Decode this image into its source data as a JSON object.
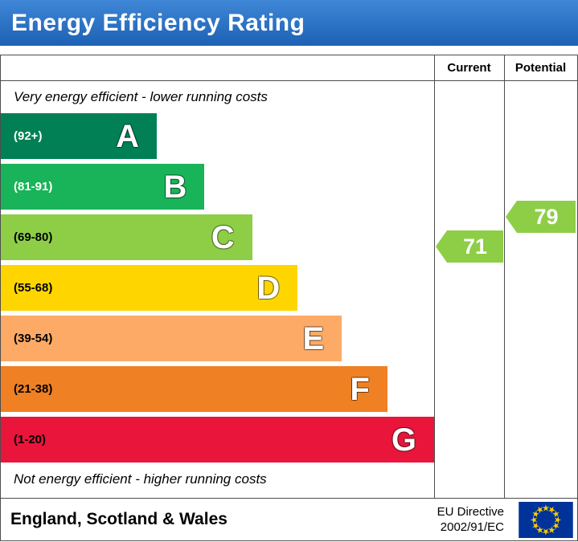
{
  "header": {
    "title": "Energy Efficiency Rating",
    "bg_top": "#3f87d6",
    "bg_bottom": "#1d61b5"
  },
  "chart_data": {
    "type": "bar",
    "title": "Energy Efficiency Rating",
    "top_note": "Very energy efficient - lower running costs",
    "bottom_note": "Not energy efficient - higher running costs",
    "columns": {
      "current_label": "Current",
      "potential_label": "Potential"
    },
    "bands": [
      {
        "letter": "A",
        "range": "(92+)",
        "color": "#008054",
        "text_color": "#ffffff",
        "width_pct": 36
      },
      {
        "letter": "B",
        "range": "(81-91)",
        "color": "#19b459",
        "text_color": "#ffffff",
        "width_pct": 47
      },
      {
        "letter": "C",
        "range": "(69-80)",
        "color": "#8dce46",
        "text_color": "#000000",
        "width_pct": 58
      },
      {
        "letter": "D",
        "range": "(55-68)",
        "color": "#ffd500",
        "text_color": "#000000",
        "width_pct": 68.5
      },
      {
        "letter": "E",
        "range": "(39-54)",
        "color": "#fcaa65",
        "text_color": "#000000",
        "width_pct": 78.7
      },
      {
        "letter": "F",
        "range": "(21-38)",
        "color": "#ef8023",
        "text_color": "#000000",
        "width_pct": 89.2
      },
      {
        "letter": "G",
        "range": "(1-20)",
        "color": "#e9153b",
        "text_color": "#000000",
        "width_pct": 100
      }
    ],
    "current": {
      "value": "71",
      "band": "C",
      "color": "#8dce46"
    },
    "potential": {
      "value": "79",
      "band": "C",
      "color": "#8dce46"
    }
  },
  "footer": {
    "region": "England, Scotland & Wales",
    "directive_line1": "EU Directive",
    "directive_line2": "2002/91/EC",
    "flag": {
      "bg": "#003399",
      "star_color": "#ffcc00"
    }
  }
}
